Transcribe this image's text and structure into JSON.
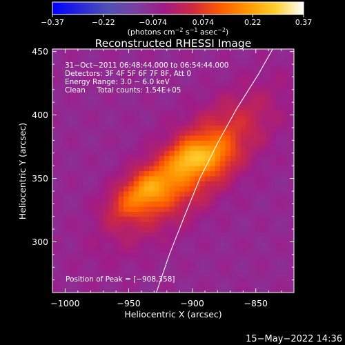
{
  "chart_data": {
    "type": "heatmap",
    "title": "Reconstructed RHESSI Image",
    "xlabel": "Heliocentric X (arcsec)",
    "ylabel": "Heliocentric Y (arcsec)",
    "xlim": [
      -1010,
      -820
    ],
    "ylim": [
      260,
      452
    ],
    "x_ticks": [
      -1000,
      -950,
      -900,
      -850
    ],
    "x_tick_labels": [
      "−1000",
      "−950",
      "−900",
      "−850"
    ],
    "y_ticks": [
      300,
      350,
      400,
      450
    ],
    "y_tick_labels": [
      "300",
      "350",
      "400",
      "450"
    ],
    "colorbar": {
      "min": -0.37,
      "max": 0.37,
      "ticks": [
        -0.37,
        -0.22,
        -0.074,
        0.074,
        0.22,
        0.37
      ],
      "tick_labels": [
        "−0.37",
        "−0.22",
        "−0.074",
        "0.074",
        "0.22",
        "0.37"
      ],
      "stops": [
        "#0000ff",
        "#2828d8",
        "#5050b4",
        "#7a3fa0",
        "#a01c88",
        "#cf2840",
        "#ff5a00",
        "#ff9800",
        "#ffd030",
        "#ffffff"
      ]
    },
    "units_text": "(photons cm",
    "units_exp1": "−2",
    "units_mid": " s",
    "units_exp2": "−1",
    "units_end": " asec",
    "units_exp3": "−2",
    "units_close": ")",
    "annotations": [
      "31−Oct−2011 06:48:44.000 to 06:54:44.000",
      "Detectors: 3F 4F 5F 6F 7F 8F, Att 0",
      "Energy Range: 3.0 − 6.0 keV",
      "Clean     Total counts: 1.54E+05"
    ],
    "peak_label": "Position of Peak = [−908,358]",
    "peak": [
      -908,
      358
    ],
    "grid": false,
    "legend": "none",
    "limb_curve": [
      [
        -930,
        255
      ],
      [
        -918,
        290
      ],
      [
        -907,
        318
      ],
      [
        -894,
        350
      ],
      [
        -880,
        378
      ],
      [
        -865,
        405
      ],
      [
        -848,
        432
      ],
      [
        -835,
        455
      ]
    ],
    "sources": [
      {
        "x": -900,
        "y": 360,
        "sx": 48,
        "sy": 18,
        "angle_deg": 42,
        "amp": 0.2
      },
      {
        "x": -935,
        "y": 342,
        "sx": 15,
        "sy": 10,
        "angle_deg": 30,
        "amp": 0.17
      },
      {
        "x": -905,
        "y": 366,
        "sx": 11,
        "sy": 8,
        "angle_deg": 40,
        "amp": 0.13
      },
      {
        "x": -885,
        "y": 368,
        "sx": 12,
        "sy": 10,
        "angle_deg": 20,
        "amp": 0.1
      },
      {
        "x": -955,
        "y": 328,
        "sx": 12,
        "sy": 9,
        "angle_deg": 30,
        "amp": 0.06
      }
    ],
    "background_level": -0.07
  },
  "footer_timestamp": "15−May−2022 14:36"
}
